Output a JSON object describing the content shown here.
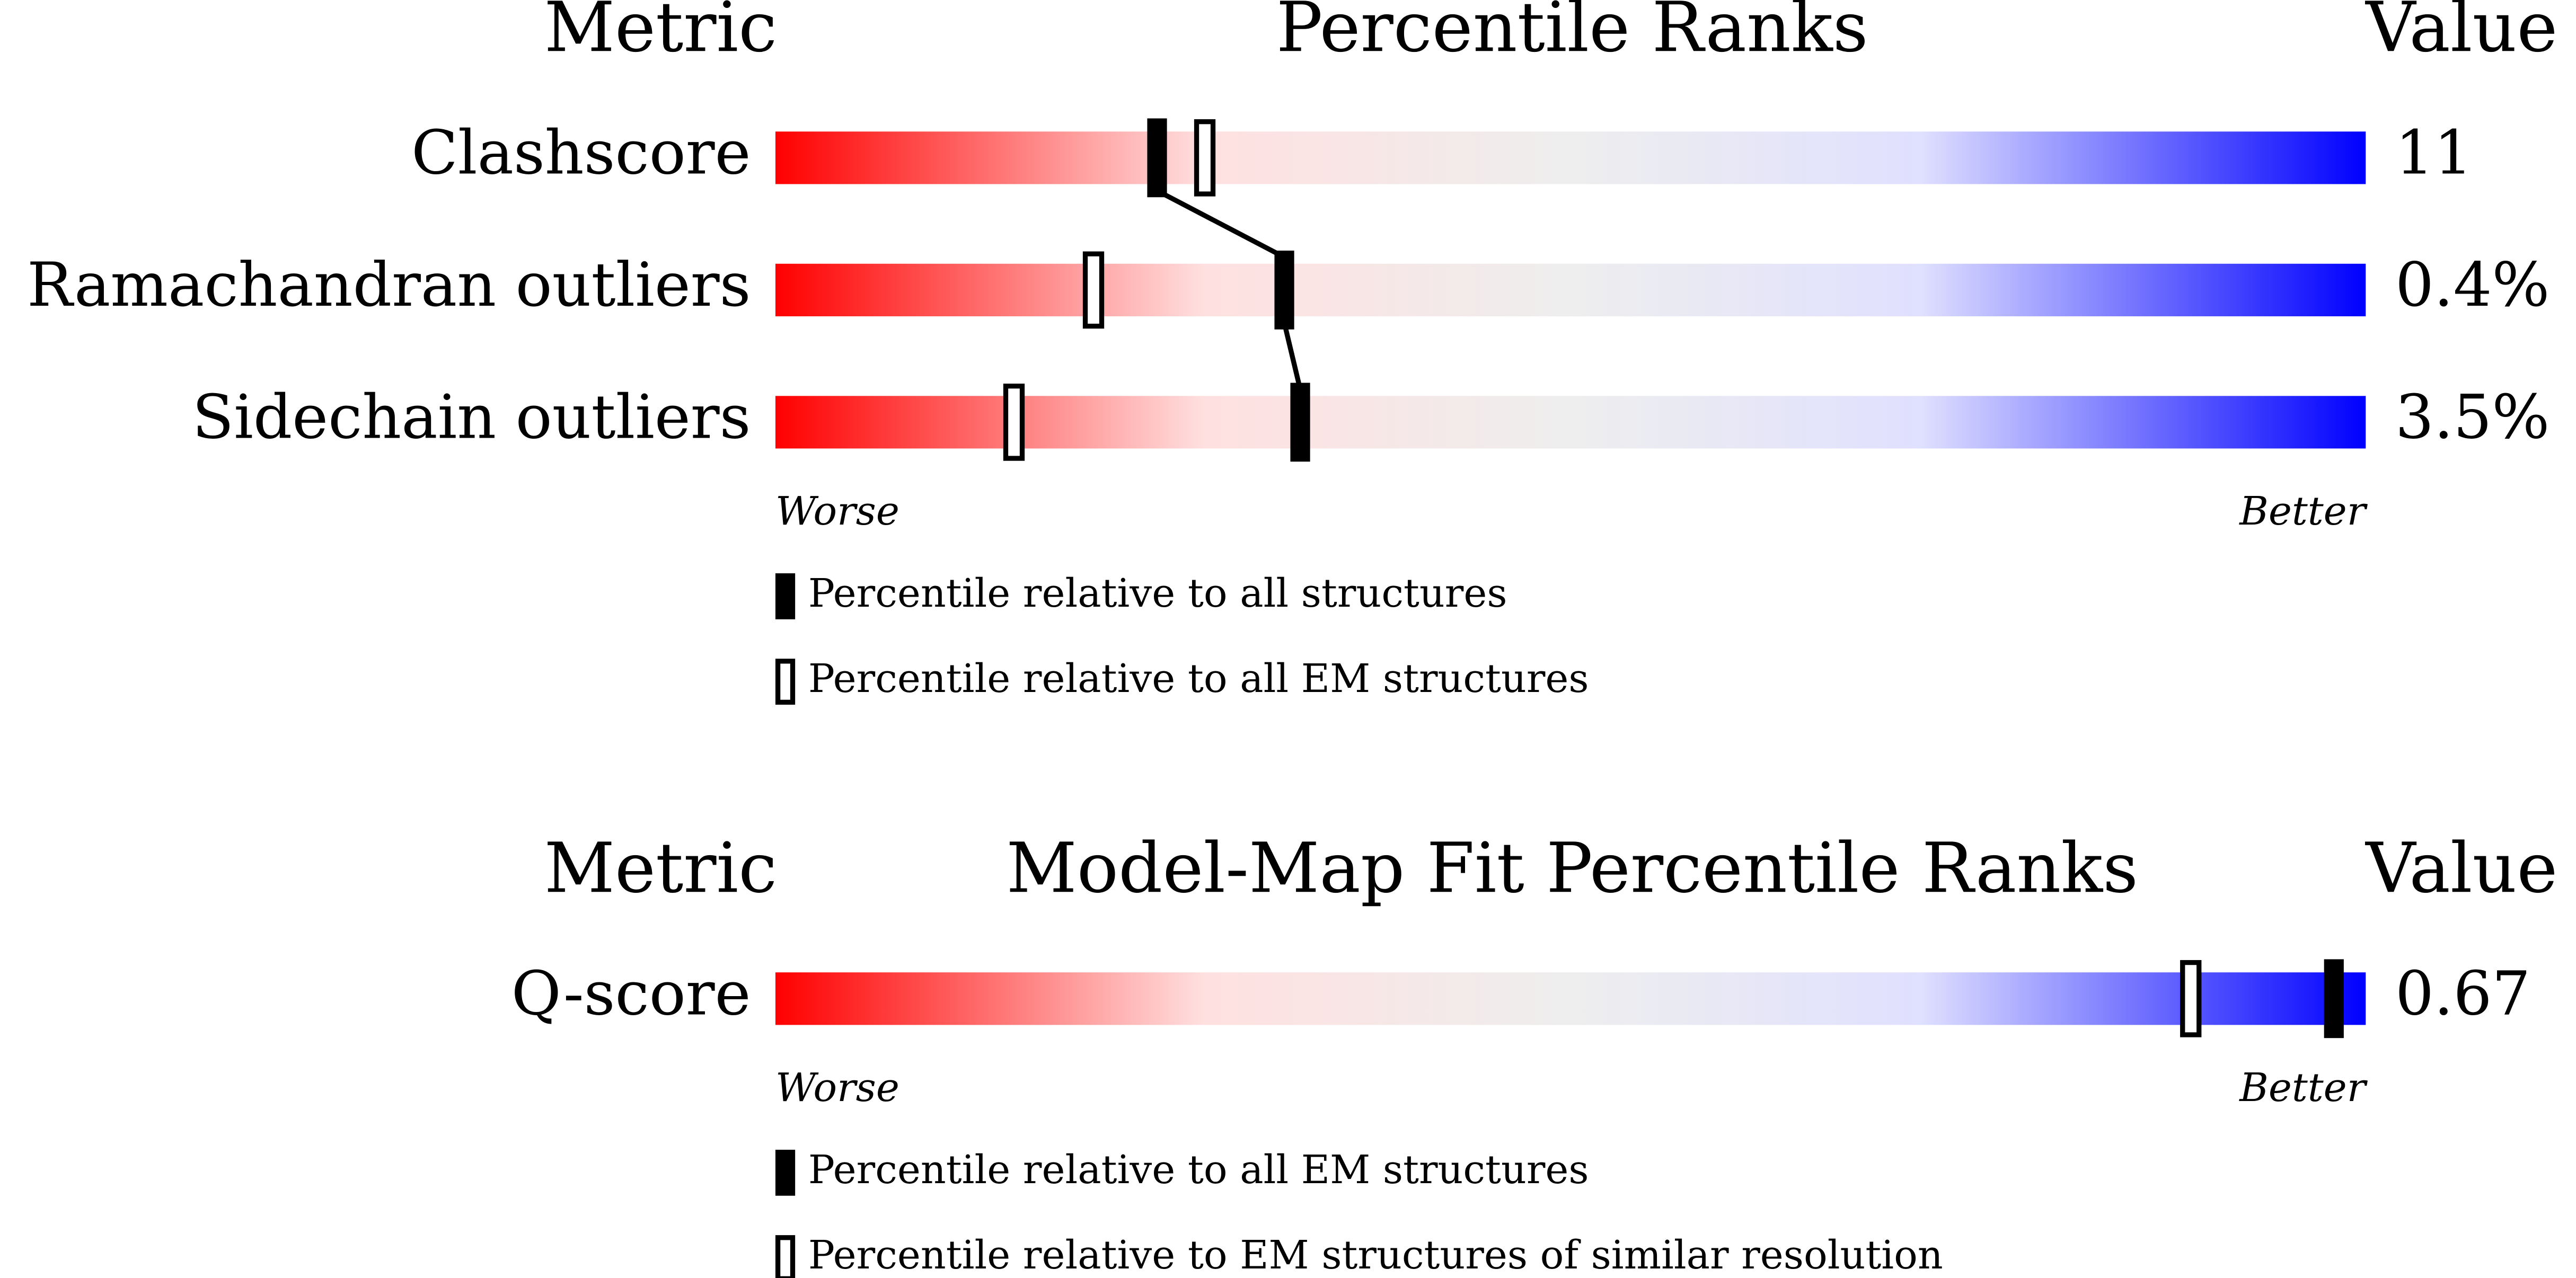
{
  "chart_data": [
    {
      "type": "slider",
      "metric_header": "Metric",
      "title": "Percentile Ranks",
      "value_header": "Value",
      "categories": [
        "Clashscore",
        "Ramachandran outliers",
        "Sidechain outliers"
      ],
      "metric_values": [
        "11",
        "0.4%",
        "3.5%"
      ],
      "xlim": [
        0,
        100
      ],
      "worse_label": "Worse",
      "better_label": "Better",
      "series": [
        {
          "name": "Percentile relative to all structures",
          "style": "filled",
          "color": "#000000",
          "values": [
            24,
            32,
            33
          ]
        },
        {
          "name": "Percentile relative to all EM structures",
          "style": "open",
          "color": "#000000",
          "values": [
            27,
            20,
            15
          ]
        }
      ]
    },
    {
      "type": "slider",
      "metric_header": "Metric",
      "title": "Model-Map Fit Percentile Ranks",
      "value_header": "Value",
      "categories": [
        "Q-score"
      ],
      "metric_values": [
        "0.67"
      ],
      "xlim": [
        0,
        100
      ],
      "worse_label": "Worse",
      "better_label": "Better",
      "series": [
        {
          "name": "Percentile relative to all EM structures",
          "style": "filled",
          "color": "#000000",
          "values": [
            98
          ]
        },
        {
          "name": "Percentile relative to EM structures of similar resolution",
          "style": "open",
          "color": "#000000",
          "values": [
            89
          ]
        }
      ]
    }
  ]
}
